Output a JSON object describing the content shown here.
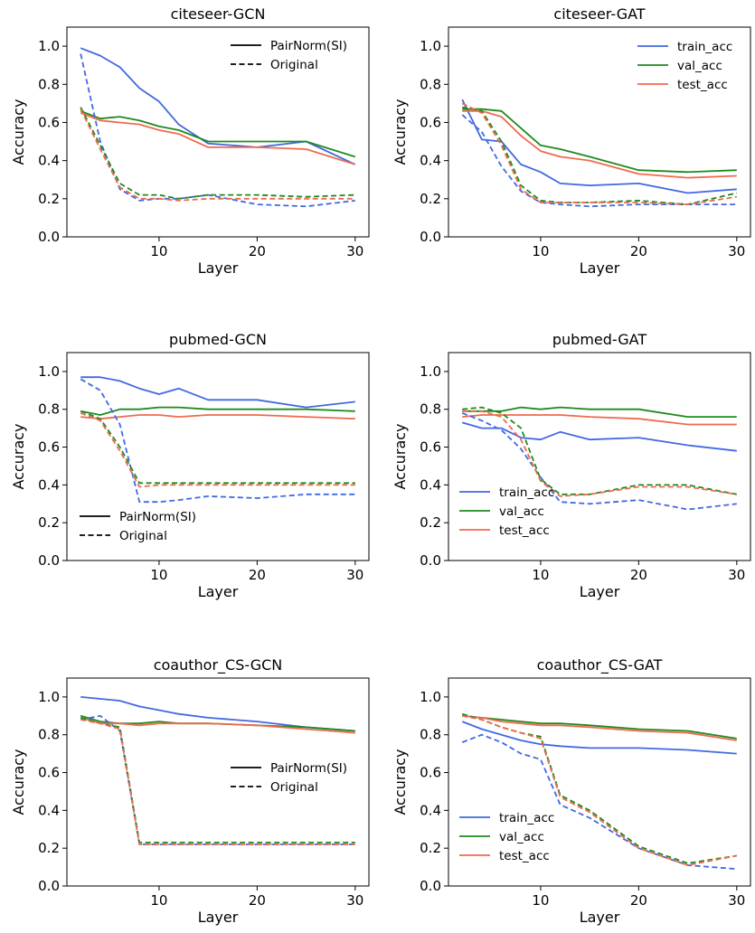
{
  "colors": {
    "train_acc": "#4169e1",
    "val_acc": "#1e8a1e",
    "test_acc": "#f06a4f",
    "axes": "#000000",
    "background": "#ffffff"
  },
  "chart_data": [
    {
      "type": "line",
      "title": "citeseer-GCN",
      "xlabel": "Layer",
      "ylabel": "Accuracy",
      "xlim": [
        0.6,
        31.4
      ],
      "ylim": [
        0.0,
        1.1
      ],
      "xticks": [
        10,
        20,
        30
      ],
      "yticks": [
        0.0,
        0.2,
        0.4,
        0.6,
        0.8,
        1.0
      ],
      "grid": false,
      "legend": {
        "position": "top-right",
        "entries": [
          {
            "label": "PairNorm(SI)",
            "style": "solid"
          },
          {
            "label": "Original",
            "style": "dashed"
          }
        ]
      },
      "x": [
        2,
        4,
        6,
        8,
        10,
        12,
        15,
        20,
        25,
        30
      ],
      "series": [
        {
          "metric": "train_acc",
          "style": "solid",
          "values": [
            0.99,
            0.95,
            0.89,
            0.78,
            0.71,
            0.59,
            0.49,
            0.47,
            0.5,
            0.38
          ]
        },
        {
          "metric": "val_acc",
          "style": "solid",
          "values": [
            0.66,
            0.62,
            0.63,
            0.61,
            0.58,
            0.56,
            0.5,
            0.5,
            0.5,
            0.42
          ]
        },
        {
          "metric": "test_acc",
          "style": "solid",
          "values": [
            0.65,
            0.61,
            0.6,
            0.59,
            0.56,
            0.54,
            0.47,
            0.47,
            0.46,
            0.38
          ]
        },
        {
          "metric": "train_acc",
          "style": "dashed",
          "values": [
            0.96,
            0.5,
            0.25,
            0.19,
            0.2,
            0.2,
            0.22,
            0.17,
            0.16,
            0.19
          ]
        },
        {
          "metric": "val_acc",
          "style": "dashed",
          "values": [
            0.68,
            0.48,
            0.28,
            0.22,
            0.22,
            0.2,
            0.22,
            0.22,
            0.21,
            0.22
          ]
        },
        {
          "metric": "test_acc",
          "style": "dashed",
          "values": [
            0.67,
            0.46,
            0.26,
            0.2,
            0.2,
            0.19,
            0.2,
            0.2,
            0.2,
            0.2
          ]
        }
      ]
    },
    {
      "type": "line",
      "title": "citeseer-GAT",
      "xlabel": "Layer",
      "ylabel": "Accuracy",
      "xlim": [
        0.6,
        31.4
      ],
      "ylim": [
        0.0,
        1.1
      ],
      "xticks": [
        10,
        20,
        30
      ],
      "yticks": [
        0.0,
        0.2,
        0.4,
        0.6,
        0.8,
        1.0
      ],
      "grid": false,
      "legend": {
        "position": "top-right",
        "entries": [
          {
            "label": "train_acc",
            "metric": "train_acc"
          },
          {
            "label": "val_acc",
            "metric": "val_acc"
          },
          {
            "label": "test_acc",
            "metric": "test_acc"
          }
        ]
      },
      "x": [
        2,
        4,
        6,
        8,
        10,
        12,
        15,
        20,
        25,
        30
      ],
      "series": [
        {
          "metric": "train_acc",
          "style": "solid",
          "values": [
            0.72,
            0.51,
            0.5,
            0.38,
            0.34,
            0.28,
            0.27,
            0.28,
            0.23,
            0.25
          ]
        },
        {
          "metric": "val_acc",
          "style": "solid",
          "values": [
            0.67,
            0.67,
            0.66,
            0.57,
            0.48,
            0.46,
            0.42,
            0.35,
            0.34,
            0.35
          ]
        },
        {
          "metric": "test_acc",
          "style": "solid",
          "values": [
            0.66,
            0.66,
            0.63,
            0.53,
            0.45,
            0.42,
            0.4,
            0.33,
            0.31,
            0.32
          ]
        },
        {
          "metric": "train_acc",
          "style": "dashed",
          "values": [
            0.64,
            0.55,
            0.37,
            0.24,
            0.18,
            0.17,
            0.16,
            0.17,
            0.17,
            0.17
          ]
        },
        {
          "metric": "val_acc",
          "style": "dashed",
          "values": [
            0.68,
            0.66,
            0.5,
            0.27,
            0.19,
            0.18,
            0.18,
            0.19,
            0.17,
            0.23
          ]
        },
        {
          "metric": "test_acc",
          "style": "dashed",
          "values": [
            0.7,
            0.65,
            0.48,
            0.25,
            0.18,
            0.18,
            0.18,
            0.18,
            0.17,
            0.21
          ]
        }
      ]
    },
    {
      "type": "line",
      "title": "pubmed-GCN",
      "xlabel": "Layer",
      "ylabel": "Accuracy",
      "xlim": [
        0.6,
        31.4
      ],
      "ylim": [
        0.0,
        1.1
      ],
      "xticks": [
        10,
        20,
        30
      ],
      "yticks": [
        0.0,
        0.2,
        0.4,
        0.6,
        0.8,
        1.0
      ],
      "grid": false,
      "legend": {
        "position": "bottom-left",
        "entries": [
          {
            "label": "PairNorm(SI)",
            "style": "solid"
          },
          {
            "label": "Original",
            "style": "dashed"
          }
        ]
      },
      "x": [
        2,
        4,
        6,
        8,
        10,
        12,
        15,
        20,
        25,
        30
      ],
      "series": [
        {
          "metric": "train_acc",
          "style": "solid",
          "values": [
            0.97,
            0.97,
            0.95,
            0.91,
            0.88,
            0.91,
            0.85,
            0.85,
            0.81,
            0.84
          ]
        },
        {
          "metric": "val_acc",
          "style": "solid",
          "values": [
            0.79,
            0.77,
            0.8,
            0.8,
            0.81,
            0.81,
            0.8,
            0.8,
            0.8,
            0.79
          ]
        },
        {
          "metric": "test_acc",
          "style": "solid",
          "values": [
            0.76,
            0.75,
            0.76,
            0.77,
            0.77,
            0.76,
            0.77,
            0.77,
            0.76,
            0.75
          ]
        },
        {
          "metric": "train_acc",
          "style": "dashed",
          "values": [
            0.96,
            0.9,
            0.72,
            0.31,
            0.31,
            0.32,
            0.34,
            0.33,
            0.35,
            0.35
          ]
        },
        {
          "metric": "val_acc",
          "style": "dashed",
          "values": [
            0.79,
            0.75,
            0.6,
            0.41,
            0.41,
            0.41,
            0.41,
            0.41,
            0.41,
            0.41
          ]
        },
        {
          "metric": "test_acc",
          "style": "dashed",
          "values": [
            0.78,
            0.74,
            0.58,
            0.39,
            0.4,
            0.4,
            0.4,
            0.4,
            0.4,
            0.4
          ]
        }
      ]
    },
    {
      "type": "line",
      "title": "pubmed-GAT",
      "xlabel": "Layer",
      "ylabel": "Accuracy",
      "xlim": [
        0.6,
        31.4
      ],
      "ylim": [
        0.0,
        1.1
      ],
      "xticks": [
        10,
        20,
        30
      ],
      "yticks": [
        0.0,
        0.2,
        0.4,
        0.6,
        0.8,
        1.0
      ],
      "grid": false,
      "legend": {
        "position": "bottom-left",
        "entries": [
          {
            "label": "train_acc",
            "metric": "train_acc"
          },
          {
            "label": "val_acc",
            "metric": "val_acc"
          },
          {
            "label": "test_acc",
            "metric": "test_acc"
          }
        ]
      },
      "x": [
        2,
        4,
        6,
        8,
        10,
        12,
        15,
        20,
        25,
        30
      ],
      "series": [
        {
          "metric": "train_acc",
          "style": "solid",
          "values": [
            0.73,
            0.7,
            0.7,
            0.65,
            0.64,
            0.68,
            0.64,
            0.65,
            0.61,
            0.58
          ]
        },
        {
          "metric": "val_acc",
          "style": "solid",
          "values": [
            0.79,
            0.79,
            0.79,
            0.81,
            0.8,
            0.81,
            0.8,
            0.8,
            0.76,
            0.76
          ]
        },
        {
          "metric": "test_acc",
          "style": "solid",
          "values": [
            0.76,
            0.77,
            0.77,
            0.77,
            0.77,
            0.77,
            0.76,
            0.75,
            0.72,
            0.72
          ]
        },
        {
          "metric": "train_acc",
          "style": "dashed",
          "values": [
            0.78,
            0.74,
            0.69,
            0.59,
            0.44,
            0.31,
            0.3,
            0.32,
            0.27,
            0.3
          ]
        },
        {
          "metric": "val_acc",
          "style": "dashed",
          "values": [
            0.8,
            0.81,
            0.78,
            0.7,
            0.43,
            0.35,
            0.35,
            0.4,
            0.4,
            0.35
          ]
        },
        {
          "metric": "test_acc",
          "style": "dashed",
          "values": [
            0.79,
            0.79,
            0.76,
            0.64,
            0.42,
            0.34,
            0.35,
            0.39,
            0.39,
            0.35
          ]
        }
      ]
    },
    {
      "type": "line",
      "title": "coauthor_CS-GCN",
      "xlabel": "Layer",
      "ylabel": "Accuracy",
      "xlim": [
        0.6,
        31.4
      ],
      "ylim": [
        0.0,
        1.1
      ],
      "xticks": [
        10,
        20,
        30
      ],
      "yticks": [
        0.0,
        0.2,
        0.4,
        0.6,
        0.8,
        1.0
      ],
      "grid": false,
      "legend": {
        "position": "center-right",
        "entries": [
          {
            "label": "PairNorm(SI)",
            "style": "solid"
          },
          {
            "label": "Original",
            "style": "dashed"
          }
        ]
      },
      "x": [
        2,
        4,
        6,
        8,
        10,
        12,
        15,
        20,
        25,
        30
      ],
      "series": [
        {
          "metric": "train_acc",
          "style": "solid",
          "values": [
            1.0,
            0.99,
            0.98,
            0.95,
            0.93,
            0.91,
            0.89,
            0.87,
            0.84,
            0.82
          ]
        },
        {
          "metric": "val_acc",
          "style": "solid",
          "values": [
            0.9,
            0.87,
            0.86,
            0.86,
            0.87,
            0.86,
            0.86,
            0.85,
            0.84,
            0.82
          ]
        },
        {
          "metric": "test_acc",
          "style": "solid",
          "values": [
            0.89,
            0.86,
            0.86,
            0.85,
            0.86,
            0.86,
            0.86,
            0.85,
            0.83,
            0.81
          ]
        },
        {
          "metric": "train_acc",
          "style": "dashed",
          "values": [
            0.88,
            0.9,
            0.82,
            0.22,
            0.22,
            0.22,
            0.22,
            0.22,
            0.22,
            0.22
          ]
        },
        {
          "metric": "val_acc",
          "style": "dashed",
          "values": [
            0.89,
            0.86,
            0.84,
            0.23,
            0.23,
            0.23,
            0.23,
            0.23,
            0.23,
            0.23
          ]
        },
        {
          "metric": "test_acc",
          "style": "dashed",
          "values": [
            0.88,
            0.86,
            0.83,
            0.22,
            0.22,
            0.22,
            0.22,
            0.22,
            0.22,
            0.22
          ]
        }
      ]
    },
    {
      "type": "line",
      "title": "coauthor_CS-GAT",
      "xlabel": "Layer",
      "ylabel": "Accuracy",
      "xlim": [
        0.6,
        31.4
      ],
      "ylim": [
        0.0,
        1.1
      ],
      "xticks": [
        10,
        20,
        30
      ],
      "yticks": [
        0.0,
        0.2,
        0.4,
        0.6,
        0.8,
        1.0
      ],
      "grid": false,
      "legend": {
        "position": "bottom-left",
        "entries": [
          {
            "label": "train_acc",
            "metric": "train_acc"
          },
          {
            "label": "val_acc",
            "metric": "val_acc"
          },
          {
            "label": "test_acc",
            "metric": "test_acc"
          }
        ]
      },
      "x": [
        2,
        4,
        6,
        8,
        10,
        12,
        15,
        20,
        25,
        30
      ],
      "series": [
        {
          "metric": "train_acc",
          "style": "solid",
          "values": [
            0.87,
            0.83,
            0.8,
            0.77,
            0.75,
            0.74,
            0.73,
            0.73,
            0.72,
            0.7
          ]
        },
        {
          "metric": "val_acc",
          "style": "solid",
          "values": [
            0.9,
            0.89,
            0.88,
            0.87,
            0.86,
            0.86,
            0.85,
            0.83,
            0.82,
            0.78
          ]
        },
        {
          "metric": "test_acc",
          "style": "solid",
          "values": [
            0.9,
            0.89,
            0.87,
            0.86,
            0.85,
            0.85,
            0.84,
            0.82,
            0.81,
            0.77
          ]
        },
        {
          "metric": "train_acc",
          "style": "dashed",
          "values": [
            0.76,
            0.8,
            0.76,
            0.7,
            0.67,
            0.43,
            0.36,
            0.2,
            0.11,
            0.09
          ]
        },
        {
          "metric": "val_acc",
          "style": "dashed",
          "values": [
            0.91,
            0.88,
            0.84,
            0.81,
            0.79,
            0.48,
            0.4,
            0.21,
            0.12,
            0.16
          ]
        },
        {
          "metric": "test_acc",
          "style": "dashed",
          "values": [
            0.9,
            0.88,
            0.84,
            0.81,
            0.78,
            0.47,
            0.39,
            0.2,
            0.11,
            0.16
          ]
        }
      ]
    }
  ]
}
